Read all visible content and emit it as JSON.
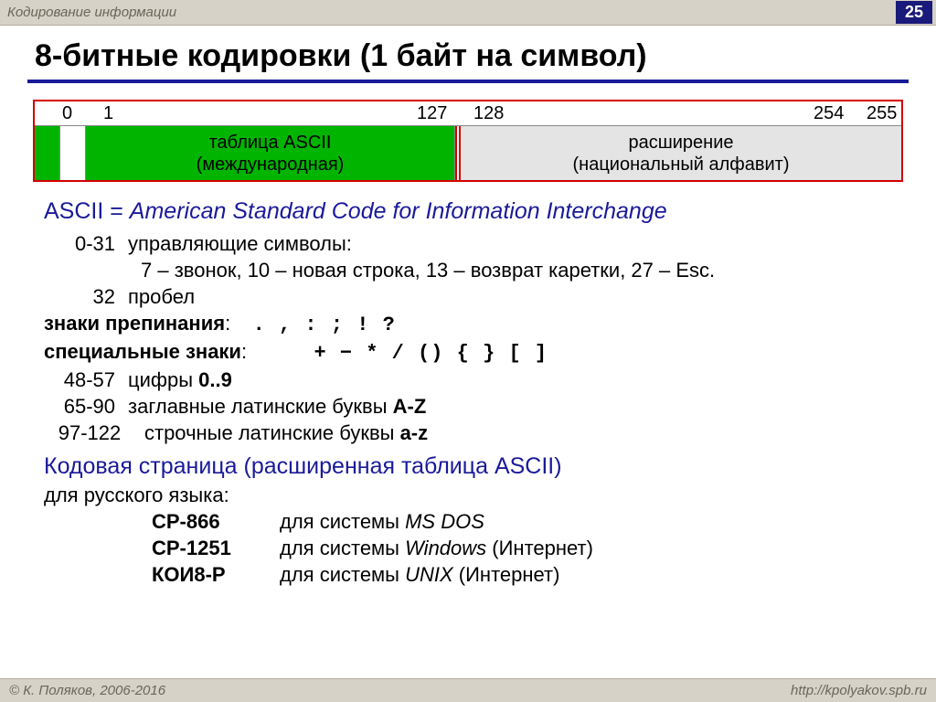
{
  "header": {
    "breadcrumb": "Кодирование информации",
    "page_number": "25"
  },
  "title": "8-битные кодировки (1 байт на символ)",
  "layout": {
    "ticks": {
      "t0": "0",
      "t1": "1",
      "t127": "127",
      "t128": "128",
      "t254": "254",
      "t255": "255"
    },
    "left_label_1": "таблица ASCII",
    "left_label_2": "(международная)",
    "right_label_1": "расширение",
    "right_label_2": "(национальный алфавит)",
    "colors": {
      "ascii_fill": "#00b400",
      "ext_fill": "#e4e4e4",
      "outline": "#d40000"
    }
  },
  "ascii_def": {
    "lhs": "ASCII = ",
    "rhs": "American Standard Code for Information Interchange"
  },
  "lines": {
    "r_0_31": "0-31",
    "t_0_31": "управляющие символы:",
    "t_ctrl_detail": "7 – звонок, 10 – новая строка, 13 – возврат каретки, 27 – Esc.",
    "r_32": "32",
    "t_32": "пробел",
    "punct_label": "знаки препинания",
    "punct_chars": ".   ,   :   ;   !   ?",
    "spec_label": "специальные знаки",
    "spec_chars": "+  −  *  /   ()   { }   [ ]",
    "r_48_57": "48-57",
    "t_48_57_a": "цифры ",
    "t_48_57_b": "0..9",
    "r_65_90": "65-90",
    "t_65_90_a": "заглавные латинские буквы ",
    "t_65_90_b": "A-Z",
    "r_97_122": "97-122",
    "t_97_122_a": "строчные латинские буквы ",
    "t_97_122_b": "a-z"
  },
  "codepage": {
    "heading": "Кодовая страница (расширенная таблица ASCII)",
    "intro": "для русского языка:",
    "rows": [
      {
        "name": "CP-866",
        "pre": "для системы ",
        "os": "MS DOS",
        "post": ""
      },
      {
        "name": "CP-1251",
        "pre": "для системы ",
        "os": "Windows",
        "post": " (Интернет)"
      },
      {
        "name": "КОИ8-Р",
        "pre": "для системы ",
        "os": "UNIX",
        "post": " (Интернет)"
      }
    ]
  },
  "footer": {
    "left": "© К. Поляков, 2006-2016",
    "right": "http://kpolyakov.spb.ru"
  }
}
